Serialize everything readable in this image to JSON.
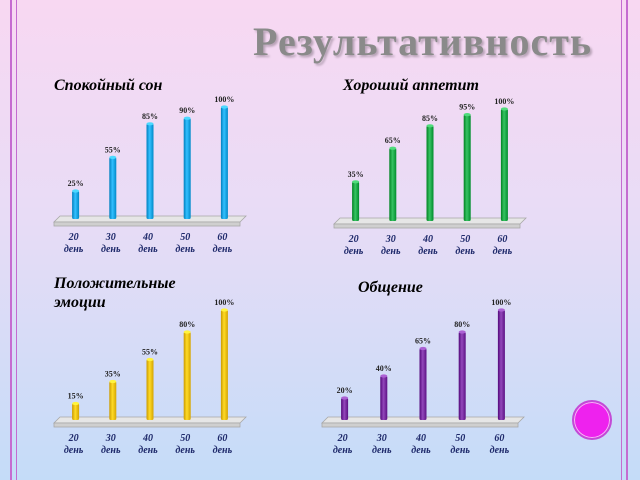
{
  "title": "Результативность",
  "chart_data": [
    {
      "type": "bar",
      "title": "Спокойный сон",
      "color": "#1aa7e6",
      "categories": [
        [
          "20",
          "день"
        ],
        [
          "30",
          "день"
        ],
        [
          "40",
          "день"
        ],
        [
          "50",
          "день"
        ],
        [
          "60",
          "день"
        ]
      ],
      "values": [
        25,
        55,
        85,
        90,
        100
      ],
      "labels": [
        "25%",
        "55%",
        "85%",
        "90%",
        "100%"
      ],
      "ylim": [
        0,
        100
      ]
    },
    {
      "type": "bar",
      "title": "Хороший аппетит",
      "color": "#1eaa4a",
      "categories": [
        [
          "20",
          "день"
        ],
        [
          "30",
          "день"
        ],
        [
          "40",
          "день"
        ],
        [
          "50",
          "день"
        ],
        [
          "60",
          "день"
        ]
      ],
      "values": [
        35,
        65,
        85,
        95,
        100
      ],
      "labels": [
        "35%",
        "65%",
        "85%",
        "95%",
        "100%"
      ],
      "ylim": [
        0,
        100
      ]
    },
    {
      "type": "bar",
      "title": "Положительные эмоции",
      "color": "#f2c20d",
      "categories": [
        [
          "20",
          "день"
        ],
        [
          "30",
          "день"
        ],
        [
          "40",
          "день"
        ],
        [
          "50",
          "день"
        ],
        [
          "60",
          "день"
        ]
      ],
      "values": [
        15,
        35,
        55,
        80,
        100
      ],
      "labels": [
        "15%",
        "35%",
        "55%",
        "80%",
        "100%"
      ],
      "ylim": [
        0,
        100
      ]
    },
    {
      "type": "bar",
      "title": "Общение",
      "color": "#7a2fa2",
      "categories": [
        [
          "20",
          "день"
        ],
        [
          "30",
          "день"
        ],
        [
          "40",
          "день"
        ],
        [
          "50",
          "день"
        ],
        [
          "60",
          "день"
        ]
      ],
      "values": [
        20,
        40,
        65,
        80,
        100
      ],
      "labels": [
        "20%",
        "40%",
        "65%",
        "80%",
        "100%"
      ],
      "ylim": [
        0,
        100
      ]
    }
  ]
}
